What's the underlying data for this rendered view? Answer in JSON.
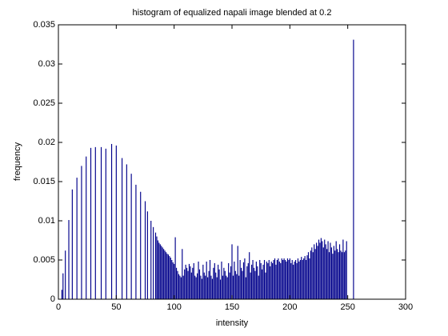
{
  "chart_data": {
    "type": "bar",
    "title": "histogram of equalized napali image blended at 0.2",
    "xlabel": "intensity",
    "ylabel": "frequency",
    "color": "#00008b",
    "xlim": [
      0,
      300
    ],
    "xticks": [
      0,
      50,
      100,
      150,
      200,
      250,
      300
    ],
    "ylim": [
      0,
      0.035
    ],
    "yticks": [
      0,
      0.005,
      0.01,
      0.015,
      0.02,
      0.025,
      0.03,
      0.035
    ],
    "x": [
      3,
      4,
      6,
      9,
      12,
      16,
      20,
      24,
      28,
      32,
      37,
      41,
      46,
      50,
      55,
      59,
      63,
      67,
      71,
      75,
      77,
      80,
      82,
      84,
      85,
      86,
      87,
      88,
      89,
      90,
      91,
      92,
      93,
      94,
      95,
      96,
      97,
      98,
      99,
      100,
      101,
      102,
      103,
      104,
      105,
      106,
      107,
      108,
      109,
      110,
      111,
      112,
      113,
      114,
      115,
      116,
      117,
      118,
      119,
      120,
      121,
      122,
      123,
      124,
      125,
      126,
      127,
      128,
      129,
      130,
      131,
      132,
      133,
      134,
      135,
      136,
      137,
      138,
      139,
      140,
      141,
      142,
      143,
      144,
      145,
      146,
      147,
      148,
      149,
      150,
      151,
      152,
      153,
      154,
      155,
      156,
      157,
      158,
      159,
      160,
      161,
      162,
      163,
      164,
      165,
      166,
      167,
      168,
      169,
      170,
      171,
      172,
      173,
      174,
      175,
      176,
      177,
      178,
      179,
      180,
      181,
      182,
      183,
      184,
      185,
      186,
      187,
      188,
      189,
      190,
      191,
      192,
      193,
      194,
      195,
      196,
      197,
      198,
      199,
      200,
      201,
      202,
      203,
      204,
      205,
      206,
      207,
      208,
      209,
      210,
      211,
      212,
      213,
      214,
      215,
      216,
      217,
      218,
      219,
      220,
      221,
      222,
      223,
      224,
      225,
      226,
      227,
      228,
      229,
      230,
      231,
      232,
      233,
      234,
      235,
      236,
      237,
      238,
      239,
      240,
      241,
      242,
      243,
      244,
      245,
      246,
      247,
      248,
      249,
      255
    ],
    "values": [
      0.0012,
      0.0033,
      0.0062,
      0.0101,
      0.014,
      0.0155,
      0.017,
      0.0182,
      0.0193,
      0.0194,
      0.0194,
      0.0192,
      0.0198,
      0.0196,
      0.018,
      0.0172,
      0.016,
      0.0146,
      0.0137,
      0.0125,
      0.0112,
      0.01,
      0.0092,
      0.0085,
      0.008,
      0.0075,
      0.0072,
      0.007,
      0.0068,
      0.0066,
      0.0064,
      0.0062,
      0.006,
      0.0058,
      0.0057,
      0.0055,
      0.0053,
      0.005,
      0.0047,
      0.0045,
      0.0079,
      0.004,
      0.0036,
      0.0032,
      0.003,
      0.0028,
      0.0064,
      0.003,
      0.0038,
      0.0044,
      0.004,
      0.0036,
      0.0045,
      0.0042,
      0.0034,
      0.004,
      0.0046,
      0.003,
      0.0028,
      0.0033,
      0.0048,
      0.0038,
      0.003,
      0.0026,
      0.0044,
      0.0034,
      0.003,
      0.0048,
      0.0028,
      0.0036,
      0.005,
      0.003,
      0.0026,
      0.004,
      0.0046,
      0.0034,
      0.0028,
      0.0044,
      0.0038,
      0.0025,
      0.0048,
      0.003,
      0.004,
      0.0036,
      0.003,
      0.0028,
      0.0046,
      0.0034,
      0.0042,
      0.007,
      0.003,
      0.0048,
      0.0036,
      0.0032,
      0.0068,
      0.003,
      0.005,
      0.004,
      0.0036,
      0.0047,
      0.0052,
      0.0028,
      0.0042,
      0.0046,
      0.006,
      0.0034,
      0.0044,
      0.005,
      0.004,
      0.0036,
      0.0048,
      0.0042,
      0.003,
      0.005,
      0.0046,
      0.0038,
      0.0044,
      0.005,
      0.0034,
      0.0048,
      0.0046,
      0.005,
      0.0042,
      0.0048,
      0.0046,
      0.005,
      0.0052,
      0.0044,
      0.005,
      0.0052,
      0.0048,
      0.0046,
      0.0052,
      0.005,
      0.0052,
      0.005,
      0.0048,
      0.0052,
      0.005,
      0.0052,
      0.0046,
      0.005,
      0.0044,
      0.0048,
      0.005,
      0.0046,
      0.0052,
      0.0048,
      0.005,
      0.0054,
      0.005,
      0.0052,
      0.0055,
      0.005,
      0.0056,
      0.006,
      0.0052,
      0.0062,
      0.0066,
      0.006,
      0.007,
      0.0064,
      0.0072,
      0.0068,
      0.0076,
      0.0072,
      0.0078,
      0.0074,
      0.0066,
      0.0076,
      0.007,
      0.0064,
      0.0074,
      0.006,
      0.0072,
      0.0066,
      0.0058,
      0.0068,
      0.0062,
      0.0074,
      0.0064,
      0.006,
      0.007,
      0.0062,
      0.006,
      0.0076,
      0.006,
      0.0062,
      0.0074,
      0.0331
    ]
  }
}
